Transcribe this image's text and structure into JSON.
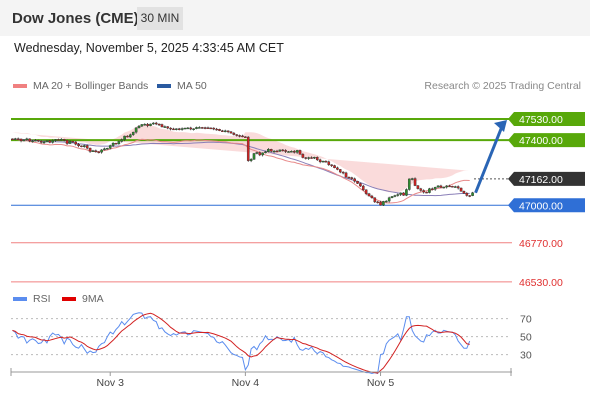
{
  "header": {
    "title": "Dow Jones (CME)",
    "timeframe": "30 MIN"
  },
  "date_line": "Wednesday, November 5, 2025 4:33:45 AM CET",
  "research_note": "Research © 2025 Trading Central",
  "colors": {
    "support": "#2f6fd6",
    "resistance": "#58a80a",
    "target": "#f08080",
    "current": "#333333",
    "candle_up": "#2e8b2e",
    "candle_down": "#cc2222",
    "ma20": "#e88a8a",
    "band_fill": "#f9d5d5",
    "ma50": "#8a7fb8",
    "rsi": "#5b8def",
    "rsi_ma": "#d22222",
    "arrow": "#2a65b5"
  },
  "chart_data": [
    {
      "type": "candlestick",
      "legend": [
        {
          "label": "MA 20 + Bollinger Bands",
          "color": "#f08080"
        },
        {
          "label": "MA 50",
          "color": "#2a5aa0"
        }
      ],
      "x_tick_labels": [
        "Nov 3",
        "Nov 4",
        "Nov 5"
      ],
      "ylim": [
        46480,
        47720
      ],
      "y_start": 47405,
      "y_moves": [
        4,
        -2,
        -11,
        5,
        7,
        -14,
        2,
        4,
        -6,
        -8,
        3,
        7,
        -10,
        12,
        6,
        -2,
        3,
        -6,
        -20,
        14,
        -4,
        -14,
        -10,
        -6,
        8,
        -16,
        -20,
        4,
        -7,
        -2,
        14,
        7,
        3,
        17,
        14,
        -4,
        15,
        11,
        22,
        -6,
        14,
        16,
        26,
        11,
        10,
        2,
        -10,
        11,
        6,
        -6,
        -3,
        -15,
        2,
        -9,
        -5,
        -4,
        5,
        -3,
        4,
        3,
        1,
        -7,
        2,
        8,
        0,
        -1,
        -1,
        -1,
        -1,
        -6,
        -1,
        -9,
        -3,
        2,
        -6,
        -8,
        -9,
        -5,
        -3,
        -5,
        -2,
        -145,
        8,
        36,
        6,
        -15,
        13,
        7,
        15,
        -12,
        1,
        -1,
        8,
        -3,
        -7,
        0,
        2,
        -7,
        12,
        -24,
        -20,
        -5,
        5,
        -4,
        6,
        -16,
        -12,
        4,
        -4,
        -18,
        -5,
        -14,
        -10,
        -16,
        -5,
        -26,
        -3,
        -7,
        -15,
        -14,
        -16,
        -23,
        -24,
        -14,
        -11,
        -25,
        -1,
        -19,
        23,
        2,
        20,
        8,
        6,
        6,
        10,
        -15,
        36,
        65,
        2,
        -43,
        -19,
        -11,
        -10,
        -3,
        24,
        -4,
        13,
        8,
        -9,
        2,
        7,
        -2,
        -2,
        0,
        -9,
        -20,
        -12,
        -14,
        -1,
        18
      ],
      "ma20": [
        47405,
        47406,
        47402,
        47398,
        47396,
        47396,
        47392,
        47388,
        47386,
        47382,
        47377,
        47375,
        47374,
        47371,
        47372,
        47374,
        47373,
        47373,
        47370,
        47365,
        47365,
        47362,
        47356,
        47350,
        47346,
        47345,
        47339,
        47332,
        47333,
        47330,
        47330,
        47334,
        47336,
        47339,
        47345,
        47351,
        47353,
        47359,
        47364,
        47372,
        47375,
        47380,
        47386,
        47396,
        47401,
        47405,
        47404,
        47400,
        47402,
        47401,
        47398,
        47393,
        47390,
        47391,
        47389,
        47388,
        47386,
        47388,
        47390,
        47394,
        47396,
        47396,
        47395,
        47397,
        47400,
        47400,
        47399,
        47398,
        47397,
        47396,
        47395,
        47393,
        47391,
        47390,
        47389,
        47386,
        47383,
        47381,
        47381,
        47379,
        47378,
        47368,
        47353,
        47343,
        47337,
        47331,
        47323,
        47316,
        47309,
        47304,
        47302,
        47297,
        47290,
        47286,
        47281,
        47274,
        47270,
        47266,
        47264,
        47258,
        47254,
        47248,
        47246,
        47243,
        47240,
        47237,
        47234,
        47230,
        47226,
        47219,
        47213,
        47205,
        47196,
        47187,
        47180,
        47169,
        47160,
        47152,
        47142,
        47129,
        47116,
        47102,
        47089,
        47075,
        47061,
        47048,
        47040,
        47031,
        47025,
        47019,
        47015,
        47014,
        47015,
        47016,
        47019,
        47023,
        47030,
        47041,
        47051,
        47061,
        47070,
        47076,
        47081,
        47085,
        47089,
        47091,
        47095,
        47101,
        47104,
        47106,
        47110,
        47115,
        47122,
        47129,
        47138,
        47144,
        47149,
        47153,
        47153,
        47152
      ],
      "ma50": [
        47405,
        47405,
        47404,
        47403,
        47402,
        47401,
        47400,
        47399,
        47398,
        47396,
        47394,
        47393,
        47392,
        47390,
        47390,
        47390,
        47389,
        47389,
        47388,
        47386,
        47385,
        47383,
        47381,
        47378,
        47376,
        47374,
        47371,
        47369,
        47367,
        47365,
        47364,
        47363,
        47363,
        47363,
        47363,
        47363,
        47363,
        47364,
        47365,
        47366,
        47367,
        47368,
        47371,
        47372,
        47374,
        47376,
        47377,
        47378,
        47379,
        47380,
        47379,
        47379,
        47379,
        47379,
        47379,
        47379,
        47378,
        47379,
        47379,
        47379,
        47380,
        47380,
        47381,
        47382,
        47383,
        47384,
        47385,
        47386,
        47387,
        47387,
        47387,
        47386,
        47386,
        47385,
        47384,
        47383,
        47381,
        47379,
        47377,
        47375,
        47373,
        47368,
        47363,
        47358,
        47353,
        47347,
        47342,
        47337,
        47333,
        47328,
        47323,
        47318,
        47313,
        47308,
        47303,
        47298,
        47292,
        47286,
        47282,
        47276,
        47270,
        47264,
        47257,
        47251,
        47245,
        47238,
        47232,
        47226,
        47220,
        47213,
        47206,
        47199,
        47192,
        47185,
        47179,
        47172,
        47167,
        47162,
        47157,
        47152,
        47146,
        47139,
        47133,
        47126,
        47119,
        47112,
        47106,
        47101,
        47097,
        47093,
        47089,
        47085,
        47082,
        47079,
        47076,
        47073,
        47070,
        47068,
        47066,
        47064,
        47062,
        47062,
        47061,
        47060,
        47060,
        47060,
        47060,
        47059,
        47060,
        47061,
        47063,
        47065,
        47067,
        47068,
        47069,
        47071,
        47072,
        47072,
        47072,
        47073
      ],
      "band_width": [
        40,
        40,
        44,
        46,
        46,
        46,
        47,
        46,
        46,
        44,
        44,
        44,
        46,
        44,
        43,
        42,
        40,
        39,
        40,
        40,
        40,
        40,
        40,
        41,
        40,
        41,
        42,
        42,
        42,
        41,
        41,
        40,
        40,
        45,
        50,
        55,
        60,
        65,
        70,
        75,
        78,
        80,
        84,
        86,
        88,
        90,
        92,
        90,
        88,
        86,
        84,
        80,
        78,
        76,
        74,
        70,
        66,
        62,
        58,
        55,
        52,
        50,
        48,
        46,
        45,
        44,
        43,
        42,
        42,
        42,
        42,
        42,
        41,
        41,
        41,
        42,
        43,
        44,
        45,
        46,
        46,
        80,
        95,
        105,
        110,
        112,
        114,
        112,
        110,
        108,
        106,
        104,
        102,
        100,
        98,
        96,
        94,
        92,
        90,
        88,
        86,
        84,
        82,
        80,
        78,
        76,
        74,
        72,
        70,
        68,
        66,
        65,
        64,
        63,
        62,
        61,
        60,
        60,
        60,
        60,
        60,
        60,
        60,
        62,
        64,
        66,
        68,
        70,
        72,
        70,
        68,
        66,
        64,
        62,
        62,
        62,
        64,
        66,
        70,
        72,
        74,
        76,
        74,
        72,
        70,
        68,
        66,
        64,
        62,
        60,
        58,
        56,
        55,
        55,
        56,
        57,
        58,
        59,
        60,
        60
      ],
      "levels": [
        {
          "label": "47530.00",
          "value": 47530,
          "kind": "resistance"
        },
        {
          "label": "47400.00",
          "value": 47400,
          "kind": "resistance"
        },
        {
          "label": "47162.00",
          "value": 47162,
          "kind": "current"
        },
        {
          "label": "47000.00",
          "value": 47000,
          "kind": "support"
        },
        {
          "label": "46770.00",
          "value": 46770,
          "kind": "target"
        },
        {
          "label": "46530.00",
          "value": 46530,
          "kind": "target"
        }
      ]
    },
    {
      "type": "line",
      "legend": [
        {
          "label": "RSI",
          "color": "#5b8def"
        },
        {
          "label": "9MA",
          "color": "#d22222"
        }
      ],
      "y_ticks": [
        {
          "label": "70",
          "value": 70
        },
        {
          "label": "50",
          "value": 50
        },
        {
          "label": "30",
          "value": 30
        }
      ],
      "ylim": [
        14,
        84
      ],
      "rsi": [
        56.9,
        54.7,
        48.3,
        50.1,
        49.6,
        42.8,
        46.0,
        47.6,
        45.8,
        42.3,
        43.0,
        47.0,
        43.0,
        50.4,
        54.0,
        51.8,
        52.4,
        49.0,
        42.0,
        48.3,
        46.5,
        41.1,
        38.3,
        37.1,
        41.1,
        36.3,
        31.5,
        34.0,
        32.2,
        32.7,
        39.1,
        42.1,
        43.3,
        50.0,
        55.0,
        53.0,
        57.9,
        61.3,
        66.7,
        63.1,
        66.9,
        70.5,
        74.6,
        75.7,
        76.5,
        76.1,
        70.1,
        71.7,
        72.1,
        68.1,
        66.6,
        58.7,
        59.7,
        55.3,
        53.0,
        51.2,
        53.4,
        51.7,
        53.6,
        54.8,
        55.3,
        51.9,
        52.9,
        56.6,
        56.1,
        55.4,
        54.7,
        54.1,
        53.5,
        49.9,
        49.2,
        44.2,
        42.8,
        44.4,
        40.7,
        36.4,
        32.1,
        30.1,
        29.1,
        27.4,
        26.8,
        13.1,
        18.5,
        36.3,
        39.0,
        35.4,
        41.9,
        44.9,
        50.9,
        46.6,
        47.0,
        46.6,
        49.7,
        48.3,
        45.5,
        45.6,
        46.7,
        43.8,
        49.1,
        41.0,
        35.7,
        34.7,
        37.1,
        35.7,
        38.6,
        34.0,
        31.1,
        33.4,
        32.0,
        27.6,
        26.7,
        24.2,
        22.8,
        20.6,
        20.1,
        17.1,
        16.8,
        16.2,
        14.9,
        14.0,
        13.0,
        12.0,
        11.0,
        10.0,
        10.0,
        9.0,
        10.0,
        9.0,
        30.0,
        31.0,
        42.0,
        46.0,
        48.0,
        50.0,
        53.0,
        46.0,
        58.0,
        72.0,
        72.0,
        57.0,
        51.0,
        48.0,
        45.0,
        44.0,
        52.0,
        51.0,
        55.0,
        57.0,
        54.0,
        54.0,
        57.0,
        56.0,
        55.0,
        55.0,
        52.0,
        45.0,
        41.0,
        37.0,
        37.0,
        45.0
      ],
      "ma9": [
        56.9,
        55.8,
        53.3,
        52.5,
        52.0,
        50.4,
        49.8,
        49.5,
        49.1,
        47.6,
        46.4,
        46.2,
        45.4,
        46.0,
        46.9,
        47.8,
        48.7,
        49.3,
        48.3,
        48.8,
        49.6,
        48.4,
        46.7,
        44.8,
        43.8,
        41.9,
        39.2,
        37.6,
        36.2,
        35.2,
        35.7,
        36.8,
        38.0,
        40.0,
        43.0,
        45.9,
        49.3,
        52.9,
        56.2,
        58.6,
        61.2,
        63.4,
        66.4,
        68.8,
        70.9,
        73.1,
        74.4,
        75.3,
        75.9,
        74.9,
        73.0,
        71.0,
        68.8,
        66.2,
        63.4,
        60.3,
        58.1,
        55.7,
        54.0,
        53.9,
        53.8,
        53.6,
        53.5,
        54.0,
        54.4,
        54.5,
        54.7,
        54.6,
        54.7,
        53.9,
        53.0,
        51.9,
        50.8,
        49.6,
        48.4,
        46.7,
        44.9,
        41.9,
        38.8,
        36.2,
        34.2,
        32.0,
        28.7,
        27.4,
        28.5,
        29.0,
        31.8,
        34.9,
        38.6,
        41.6,
        44.6,
        47.2,
        49.0,
        48.1,
        47.8,
        47.1,
        47.1,
        46.6,
        46.9,
        45.6,
        44.1,
        42.3,
        41.8,
        40.4,
        39.5,
        38.4,
        37.3,
        35.6,
        34.6,
        33.7,
        32.5,
        30.8,
        28.9,
        27.1,
        25.2,
        23.3,
        21.5,
        19.9,
        18.4,
        17.0,
        15.6,
        14.4,
        13.2,
        12.1,
        11.2,
        10.4,
        9.9,
        9.5,
        12.4,
        15.1,
        19.5,
        23.9,
        28.7,
        33.9,
        39.3,
        44.8,
        50.3,
        55.0,
        59.1,
        61.5,
        62.2,
        62.5,
        62.2,
        61.8,
        61.6,
        59.8,
        58.0,
        55.6,
        55.1,
        54.6,
        55.0,
        55.4,
        55.2,
        54.7,
        53.8,
        52.0,
        49.4,
        45.8,
        42.0,
        41.4
      ]
    }
  ]
}
